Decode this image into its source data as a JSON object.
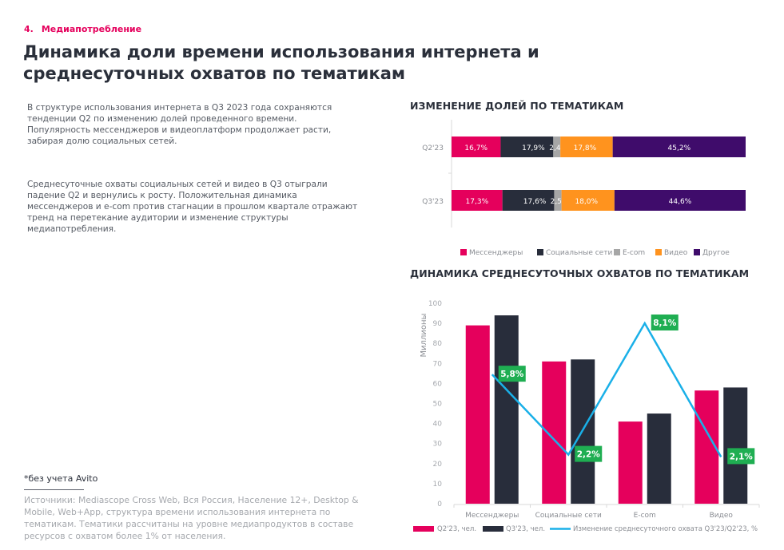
{
  "section": {
    "number": "4.",
    "label": "Медиапотребление"
  },
  "title": "Динамика доли времени использования интернета и среднесуточных охватов по тематикам",
  "paragraphs": [
    "В структуре использования интернета в Q3 2023 года сохраняются тенденции Q2 по изменению долей проведенного времени. Популярность мессенджеров и видеоплатформ продолжает расти, забирая долю социальных сетей.",
    "Среднесуточные охваты социальных сетей и видео в Q3 отыграли падение Q2 и вернулись к росту. Положительная динамика мессенджеров и e-com против стагнации в прошлом квартале отражают тренд на перетекание аудитории и изменение структуры медиапотребления."
  ],
  "footnote": "*без учета Avito",
  "sources": "Источники: Mediascope Cross Web, Вся Россия, Население 12+, Desktop & Mobile, Web+App, структура времени использования интернета по тематикам. Тематики рассчитаны на уровне медиапродуктов в составе ресурсов с охватом более 1% от населения.",
  "colors": {
    "messengers": "#e5005c",
    "social": "#282d3b",
    "ecom": "#a6a6a6",
    "video": "#ff931e",
    "other": "#3f0c6b",
    "line": "#1ab0e8",
    "label_bg": "#1fae52"
  },
  "chart_data": [
    {
      "type": "bar",
      "stacked": true,
      "orientation": "horizontal",
      "title": "ИЗМЕНЕНИЕ ДОЛЕЙ ПО ТЕМАТИКАМ",
      "categories": [
        "Q2'23",
        "Q3'23"
      ],
      "series": [
        {
          "name": "Мессенджеры",
          "values": [
            16.7,
            17.3
          ],
          "labels": [
            "16,7%",
            "17,3%"
          ]
        },
        {
          "name": "Социальные сети",
          "values": [
            17.9,
            17.6
          ],
          "labels": [
            "17,9%",
            "17,6%"
          ]
        },
        {
          "name": "E-com",
          "values": [
            2.4,
            2.5
          ],
          "labels": [
            "2,4%",
            "2,5%"
          ],
          "marker": "*"
        },
        {
          "name": "Видео",
          "values": [
            17.8,
            18.0
          ],
          "labels": [
            "17,8%",
            "18,0%"
          ]
        },
        {
          "name": "Другое",
          "values": [
            45.2,
            44.6
          ],
          "labels": [
            "45,2%",
            "44,6%"
          ]
        }
      ],
      "legend_position": "bottom"
    },
    {
      "type": "bar",
      "title": "ДИНАМИКА СРЕДНЕСУТОЧНЫХ ОХВАТОВ ПО ТЕМАТИКАМ",
      "ylabel": "Миллионы",
      "ylim": [
        0,
        100
      ],
      "yticks": [
        "0",
        "10",
        "20",
        "30",
        "40",
        "50",
        "60",
        "70",
        "80",
        "90",
        "100"
      ],
      "categories": [
        "Мессенджеры",
        "Социальные сети",
        "E-com",
        "Видео"
      ],
      "series": [
        {
          "name": "Q2'23, чел.",
          "type": "bar",
          "values": [
            89,
            71,
            41,
            56.5
          ]
        },
        {
          "name": "Q3'23, чел.",
          "type": "bar",
          "values": [
            94,
            72,
            45,
            58
          ]
        },
        {
          "name": "Изменение среднесуточного охвата Q3'23/Q2'23, %",
          "type": "line",
          "values": [
            5.8,
            2.2,
            8.1,
            2.1
          ],
          "labels": [
            "5,8%",
            "2,2%",
            "8,1%",
            "2,1%"
          ]
        }
      ],
      "legend_position": "bottom"
    }
  ]
}
